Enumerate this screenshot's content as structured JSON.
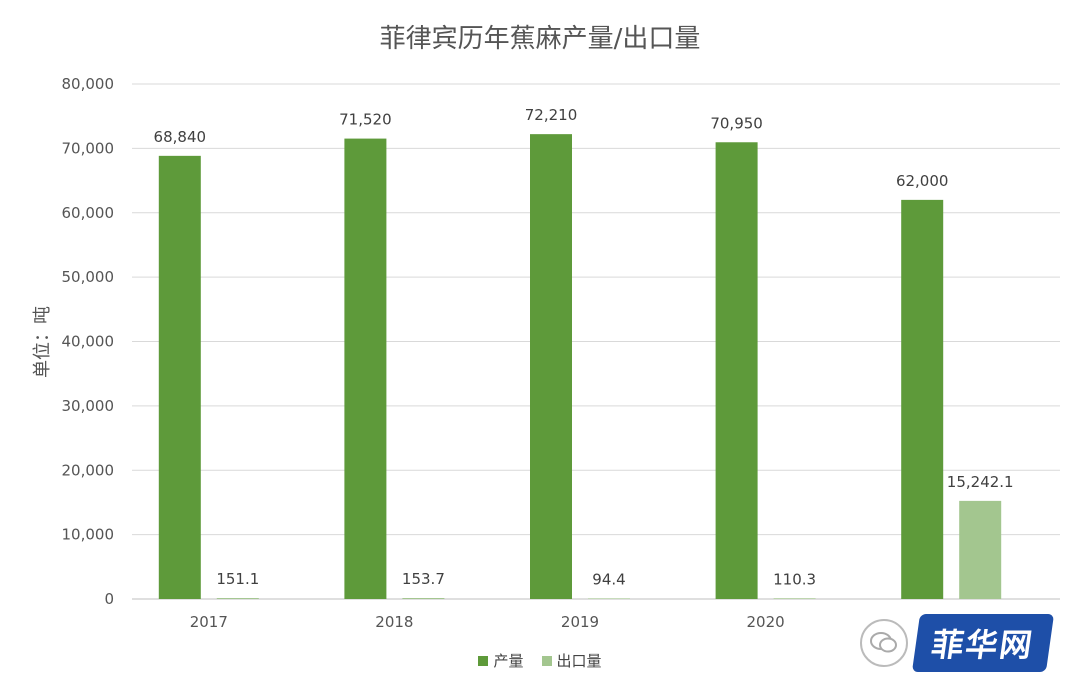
{
  "chart_data": {
    "type": "bar",
    "title": "菲律宾历年蕉麻产量/出口量",
    "ylabel": "单位：吨",
    "xlabel": "",
    "categories": [
      "2017",
      "2018",
      "2019",
      "2020",
      ""
    ],
    "ylim": [
      0,
      80000
    ],
    "yticks": [
      0,
      10000,
      20000,
      30000,
      40000,
      50000,
      60000,
      70000,
      80000
    ],
    "ytick_labels": [
      "0",
      "10,000",
      "20,000",
      "30,000",
      "40,000",
      "50,000",
      "60,000",
      "70,000",
      "80,000"
    ],
    "grid": true,
    "legend_position": "bottom",
    "series": [
      {
        "name": "产量",
        "color": "#5e9a3a",
        "values": [
          68840,
          71520,
          72210,
          70950,
          62000
        ],
        "labels": [
          "68,840",
          "71,520",
          "72,210",
          "70,950",
          "62,000"
        ]
      },
      {
        "name": "出口量",
        "color": "#a3c68f",
        "values": [
          151.1,
          153.7,
          94.4,
          110.3,
          15242.1
        ],
        "labels": [
          "151.1",
          "153.7",
          "94.4",
          "110.3",
          "15,242.1"
        ]
      }
    ]
  },
  "watermark": {
    "text": "菲华网",
    "icon": "wechat-icon"
  }
}
